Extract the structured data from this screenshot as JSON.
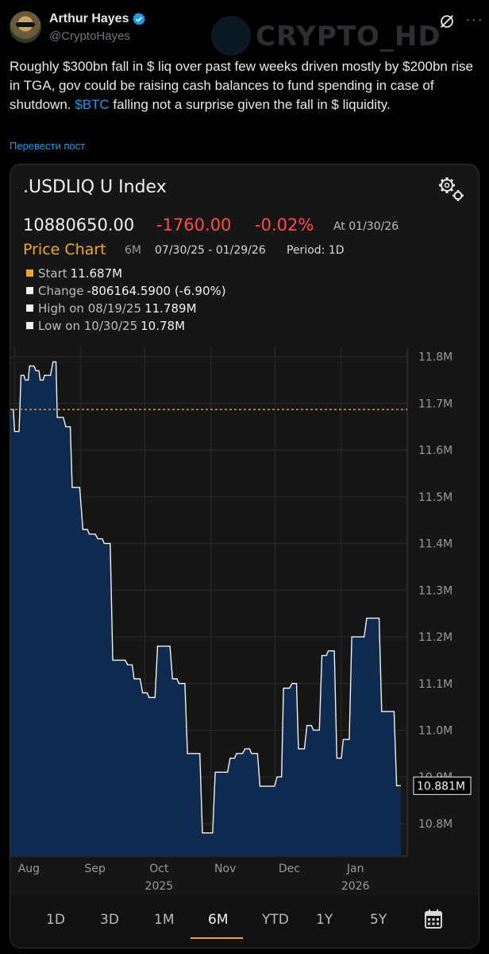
{
  "tweet": {
    "author_name": "Arthur Hayes",
    "handle": "@CryptoHayes",
    "watermark": "CRYPTO_HD",
    "text_before": "Roughly $300bn fall in $ liq over past few weeks driven mostly by $200bn rise in TGA, gov could be raising cash balances to fund spending in case of shutdown. ",
    "cashtag": "$BTC",
    "text_after": " falling not a surprise given the fall in $ liquidity.",
    "translate_label": "Перевести пост",
    "icons": {
      "verified": "verified-badge-icon",
      "grok": "grok-icon",
      "more": "more-icon"
    }
  },
  "terminal": {
    "index_title": ".USDLIQ U Index",
    "last_price": "10880650.00",
    "net_change": "-1760.00",
    "pct_change": "-0.02%",
    "as_of": "At 01/30/26",
    "chart_title": "Price Chart",
    "range": "6M",
    "date_range": "07/30/25 - 01/29/26",
    "period": "Period: 1D",
    "stats": [
      {
        "label": "Start",
        "value": "11.687M"
      },
      {
        "label": "Change",
        "value": "-806164.5900 (-6.90%)"
      },
      {
        "label": "High on 08/19/25",
        "value": "11.789M"
      },
      {
        "label": "Low on 10/30/25",
        "value": "10.78M"
      }
    ],
    "timeframes": [
      "1D",
      "3D",
      "1M",
      "6M",
      "YTD",
      "1Y",
      "5Y"
    ],
    "active_timeframe": "6M",
    "colors": {
      "accent": "#f5a623",
      "negative": "#ff4b4b",
      "area_fill": "#0e2a4e",
      "line": "#f2f2f2"
    }
  },
  "chart_data": {
    "type": "area",
    "x": [
      "07/30/25",
      "08/01/25",
      "08/04/25",
      "08/06/25",
      "08/08/25",
      "08/11/25",
      "08/13/25",
      "08/15/25",
      "08/19/25",
      "08/21/25",
      "08/25/25",
      "08/28/25",
      "09/02/25",
      "09/05/25",
      "09/09/25",
      "09/12/25",
      "09/16/25",
      "09/19/25",
      "09/23/25",
      "09/26/25",
      "09/30/25",
      "10/03/25",
      "10/07/25",
      "10/10/25",
      "10/14/25",
      "10/17/25",
      "10/21/25",
      "10/24/25",
      "10/28/25",
      "10/30/25",
      "11/03/25",
      "11/06/25",
      "11/10/25",
      "11/13/25",
      "11/17/25",
      "11/20/25",
      "11/24/25",
      "11/28/25",
      "12/02/25",
      "12/05/25",
      "12/09/25",
      "12/12/25",
      "12/16/25",
      "12/19/25",
      "12/23/25",
      "12/26/25",
      "12/30/25",
      "01/02/26",
      "01/06/26",
      "01/09/26",
      "01/13/26",
      "01/16/26",
      "01/20/26",
      "01/23/26",
      "01/27/26",
      "01/29/26"
    ],
    "values": [
      11.687,
      11.64,
      11.76,
      11.75,
      11.78,
      11.77,
      11.75,
      11.76,
      11.789,
      11.67,
      11.65,
      11.52,
      11.43,
      11.42,
      11.41,
      11.4,
      11.15,
      11.15,
      11.14,
      11.11,
      11.08,
      11.07,
      11.18,
      11.18,
      11.11,
      11.1,
      10.95,
      10.95,
      10.78,
      10.78,
      10.91,
      10.91,
      10.94,
      10.95,
      10.96,
      10.95,
      10.88,
      10.88,
      10.9,
      11.09,
      11.1,
      10.96,
      11.01,
      11.0,
      11.16,
      11.17,
      10.94,
      10.98,
      11.2,
      11.2,
      11.24,
      11.24,
      11.04,
      11.04,
      10.881,
      10.881
    ],
    "y_ticks": [
      "11.8M",
      "11.7M",
      "11.6M",
      "11.5M",
      "11.4M",
      "11.3M",
      "11.2M",
      "11.1M",
      "11.0M",
      "10.9M",
      "10.8M"
    ],
    "y_tick_values": [
      11.8,
      11.7,
      11.6,
      11.5,
      11.4,
      11.3,
      11.2,
      11.1,
      11.0,
      10.9,
      10.8
    ],
    "ylim": [
      10.73,
      11.82
    ],
    "x_tick_labels": [
      "Aug",
      "Sep",
      "Oct",
      "Nov",
      "Dec",
      "Jan"
    ],
    "x_tick_dates": [
      "08/01/25",
      "09/01/25",
      "10/01/25",
      "11/01/25",
      "12/01/25",
      "01/01/26"
    ],
    "x_year_labels": [
      {
        "label": "2025",
        "at": "Oct"
      },
      {
        "label": "2026",
        "at": "Jan"
      }
    ],
    "start_reference": 11.687,
    "last_value_label": "10.881M",
    "grid": true
  }
}
